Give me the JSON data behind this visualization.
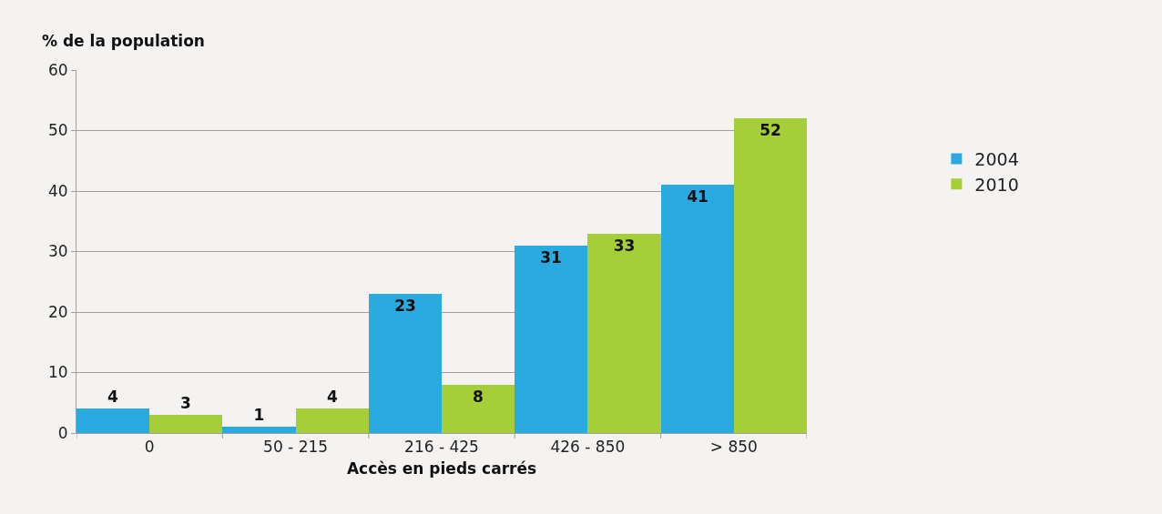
{
  "chart_data": {
    "type": "bar",
    "ylabel": "% de la population",
    "xlabel": "Accès en pieds carrés",
    "categories": [
      "0",
      "50 - 215",
      "216 - 425",
      "426 - 850",
      "> 850"
    ],
    "series": [
      {
        "name": "2004",
        "color": "#29abe2",
        "values": [
          4,
          1,
          23,
          31,
          41
        ]
      },
      {
        "name": "2010",
        "color": "#a6ce39",
        "values": [
          3,
          4,
          8,
          33,
          52
        ]
      }
    ],
    "ylim": [
      0,
      60
    ],
    "yticks": [
      0,
      10,
      20,
      30,
      40,
      50,
      60
    ],
    "grid": "y",
    "legend": "right",
    "data_labels": true
  }
}
